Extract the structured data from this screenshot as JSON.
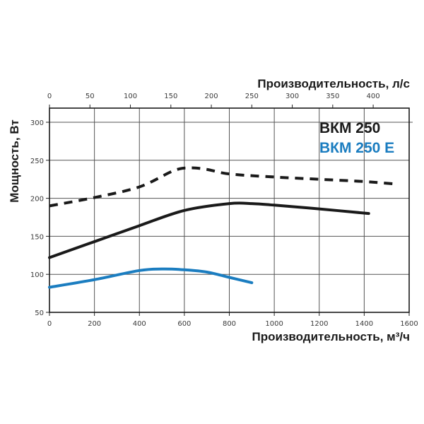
{
  "chart_data": {
    "type": "line",
    "title": "",
    "xlabel": "Производительность, м³/ч",
    "x2label": "Производительность, л/с",
    "ylabel": "Мощность, Вт",
    "xlim": [
      0,
      1600
    ],
    "ylim": [
      50,
      320
    ],
    "x_ticks": [
      0,
      200,
      400,
      600,
      800,
      1000,
      1200,
      1400,
      1600
    ],
    "x2_ticks": [
      0,
      50,
      100,
      150,
      200,
      250,
      300,
      350,
      400
    ],
    "y_ticks": [
      50,
      100,
      150,
      200,
      250,
      300
    ],
    "grid": true,
    "legend_position": "upper right",
    "legend": [
      {
        "label": "ВКМ 250",
        "color": "#1a1a1a"
      },
      {
        "label": "ВКМ 250 Е",
        "color": "#1b7dc0"
      }
    ],
    "series": [
      {
        "name": "ВКМ 250 (dashed)",
        "style": "dashed",
        "color": "#1a1a1a",
        "x": [
          0,
          200,
          400,
          550,
          620,
          700,
          800,
          1000,
          1200,
          1400,
          1530
        ],
        "y": [
          190,
          201,
          215,
          236,
          240,
          238,
          232,
          228,
          225,
          222,
          219
        ]
      },
      {
        "name": "ВКМ 250 (solid)",
        "style": "solid",
        "color": "#1a1a1a",
        "x": [
          0,
          200,
          400,
          600,
          800,
          900,
          1000,
          1200,
          1420
        ],
        "y": [
          122,
          143,
          164,
          184,
          193,
          193,
          191,
          186,
          180
        ]
      },
      {
        "name": "ВКМ 250 Е",
        "style": "solid",
        "color": "#1b7dc0",
        "x": [
          0,
          200,
          400,
          500,
          600,
          700,
          800,
          900
        ],
        "y": [
          83,
          93,
          105,
          107,
          106,
          103,
          96,
          89
        ]
      }
    ]
  }
}
